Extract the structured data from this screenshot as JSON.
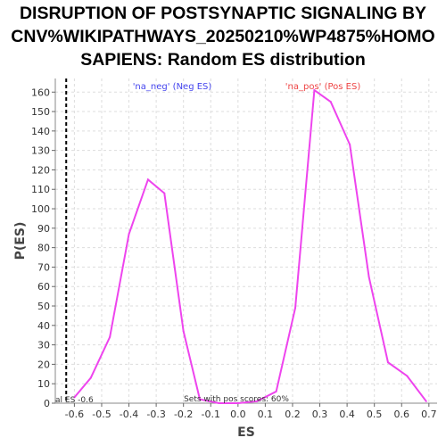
{
  "chart_data": {
    "type": "line",
    "title_lines": [
      "DISRUPTION OF POSTSYNAPTIC SIGNALING BY",
      "CNV%WIKIPATHWAYS_20250210%WP4875%HOMO",
      "SAPIENS: Random ES distribution"
    ],
    "xlabel": "ES",
    "ylabel": "P(ES)",
    "xlim": [
      -0.67,
      0.73
    ],
    "ylim": [
      0,
      167
    ],
    "xticks": [
      -0.6,
      -0.5,
      -0.4,
      -0.3,
      -0.2,
      -0.1,
      0.0,
      0.1,
      0.2,
      0.3,
      0.4,
      0.5,
      0.6,
      0.7
    ],
    "xtick_labels": [
      "-0.6",
      "-0.5",
      "-0.4",
      "-0.3",
      "-0.2",
      "-0.1",
      "0.0",
      "0.1",
      "0.2",
      "0.3",
      "0.4",
      "0.5",
      "0.6",
      "0.7"
    ],
    "yticks": [
      0,
      10,
      20,
      30,
      40,
      50,
      60,
      70,
      80,
      90,
      100,
      110,
      120,
      130,
      140,
      150,
      160
    ],
    "ytick_labels": [
      "0",
      "10",
      "20",
      "30",
      "40",
      "50",
      "60",
      "70",
      "80",
      "90",
      "100",
      "110",
      "120",
      "130",
      "140",
      "150",
      "160"
    ],
    "grid": true,
    "series": [
      {
        "color": "#ee44ee",
        "x": [
          -0.6,
          -0.54,
          -0.47,
          -0.4,
          -0.33,
          -0.27,
          -0.2,
          -0.14,
          -0.07,
          0.0,
          0.07,
          0.14,
          0.21,
          0.28,
          0.34,
          0.41,
          0.48,
          0.55,
          0.62,
          0.69
        ],
        "y": [
          3,
          13,
          34,
          87,
          115,
          108,
          37,
          2,
          0,
          0,
          1,
          6,
          49,
          161,
          155,
          133,
          65,
          21,
          14,
          1
        ]
      }
    ],
    "vline": {
      "x": -0.63,
      "style": "dashed",
      "color": "#000000"
    },
    "annotations": {
      "neg_label": "'na_neg' (Neg ES)",
      "neg_color": "#4444ee",
      "pos_label": "'na_pos' (Pos ES)",
      "pos_color": "#ee4444",
      "es_label": "al ES -0.6",
      "pos_scores_label": "Sets with pos scores: 60%"
    }
  }
}
